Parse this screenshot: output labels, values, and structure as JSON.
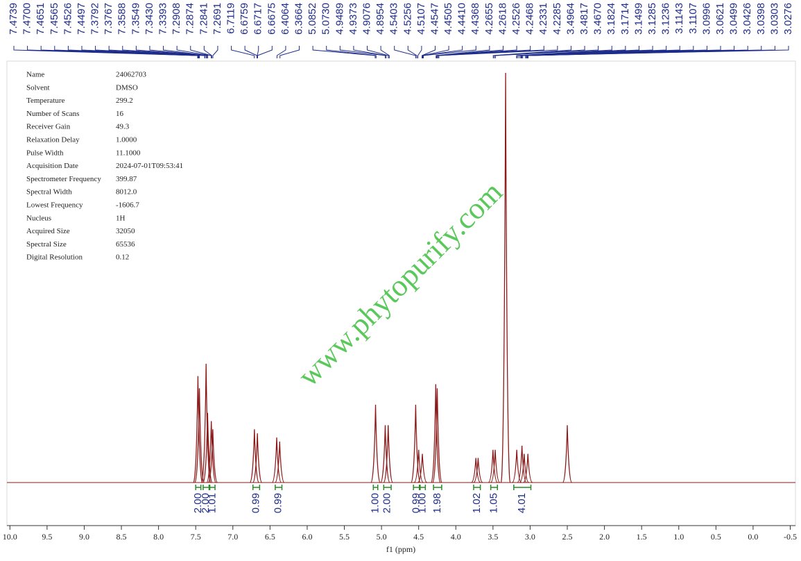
{
  "chart_data": {
    "type": "nmr",
    "xlabel": "f1 (ppm)",
    "watermark": "www.phytopurify.com",
    "xlim": [
      10.04,
      -0.57
    ],
    "ylim": [
      0,
      100
    ],
    "xticks": [
      {
        "value": 10,
        "label": "10.0"
      },
      9.5,
      {
        "value": 9,
        "label": "9.0"
      },
      8.5,
      {
        "value": 8,
        "label": "8.0"
      },
      7.5,
      {
        "value": 7,
        "label": "7.0"
      },
      6.5,
      {
        "value": 6,
        "label": "6.0"
      },
      5.5,
      {
        "value": 5,
        "label": "5.0"
      },
      4.5,
      {
        "value": 4,
        "label": "4.0"
      },
      3.5,
      {
        "value": 3,
        "label": "3.0"
      },
      2.5,
      {
        "value": 2,
        "label": "2.0"
      },
      1.5,
      {
        "value": 1,
        "label": "1.0"
      },
      0.5,
      {
        "value": 0,
        "label": "0.0"
      },
      -0.5
    ],
    "color": "#8b1a1a",
    "x": [
      7.47,
      7.45,
      7.36,
      7.34,
      7.29,
      7.27,
      6.71,
      6.67,
      6.41,
      6.37,
      5.08,
      4.95,
      4.91,
      4.54,
      4.5,
      4.45,
      4.27,
      4.25,
      3.73,
      3.7,
      3.5,
      3.47,
      3.33,
      3.18,
      3.11,
      3.08,
      3.03,
      2.5
    ],
    "values": [
      26,
      23,
      29,
      17,
      15,
      13,
      13,
      12,
      11,
      10,
      19,
      14,
      14,
      19,
      8,
      7,
      24,
      23,
      6,
      6,
      8,
      8,
      100,
      8,
      9,
      7,
      7,
      14
    ],
    "peak_labels": [
      {
        "value": 7.4739,
        "label": "7.4739"
      },
      {
        "value": 7.47,
        "label": "7.4700"
      },
      {
        "value": 7.4651,
        "label": "7.4651"
      },
      {
        "value": 7.4565,
        "label": "7.4565"
      },
      {
        "value": 7.4526,
        "label": "7.4526"
      },
      {
        "value": 7.4497,
        "label": "7.4497"
      },
      {
        "value": 7.3792,
        "label": "7.3792"
      },
      {
        "value": 7.3767,
        "label": "7.3767"
      },
      {
        "value": 7.3588,
        "label": "7.3588"
      },
      {
        "value": 7.3549,
        "label": "7.3549"
      },
      {
        "value": 7.343,
        "label": "7.3430"
      },
      {
        "value": 7.3393,
        "label": "7.3393"
      },
      {
        "value": 7.2908,
        "label": "7.2908"
      },
      {
        "value": 7.2874,
        "label": "7.2874"
      },
      {
        "value": 7.2841,
        "label": "7.2841"
      },
      {
        "value": 7.2691,
        "label": "7.2691"
      },
      {
        "value": 6.7119,
        "label": "6.7119"
      },
      {
        "value": 6.6759,
        "label": "6.6759"
      },
      {
        "value": 6.6717,
        "label": "6.6717"
      },
      {
        "value": 6.6675,
        "label": "6.6675"
      },
      {
        "value": 6.4064,
        "label": "6.4064"
      },
      {
        "value": 6.3664,
        "label": "6.3664"
      },
      {
        "value": 5.0852,
        "label": "5.0852"
      },
      {
        "value": 5.073,
        "label": "5.0730"
      },
      {
        "value": 4.9489,
        "label": "4.9489"
      },
      {
        "value": 4.9373,
        "label": "4.9373"
      },
      {
        "value": 4.9076,
        "label": "4.9076"
      },
      {
        "value": 4.8954,
        "label": "4.8954"
      },
      {
        "value": 4.5403,
        "label": "4.5403"
      },
      {
        "value": 4.5256,
        "label": "4.5256"
      },
      {
        "value": 4.5107,
        "label": "4.5107"
      },
      {
        "value": 4.4547,
        "label": "4.4547"
      },
      {
        "value": 4.4505,
        "label": "4.4505"
      },
      {
        "value": 4.441,
        "label": "4.4410"
      },
      {
        "value": 4.4368,
        "label": "4.4368"
      },
      {
        "value": 4.2655,
        "label": "4.2655"
      },
      {
        "value": 4.2618,
        "label": "4.2618"
      },
      {
        "value": 4.2526,
        "label": "4.2526"
      },
      {
        "value": 4.2468,
        "label": "4.2468"
      },
      {
        "value": 4.2331,
        "label": "4.2331"
      },
      {
        "value": 4.2285,
        "label": "4.2285"
      },
      {
        "value": 3.4964,
        "label": "3.4964"
      },
      {
        "value": 3.4817,
        "label": "3.4817"
      },
      {
        "value": 3.467,
        "label": "3.4670"
      },
      {
        "value": 3.1824,
        "label": "3.1824"
      },
      {
        "value": 3.1714,
        "label": "3.1714"
      },
      {
        "value": 3.1499,
        "label": "3.1499"
      },
      {
        "value": 3.1285,
        "label": "3.1285"
      },
      {
        "value": 3.1236,
        "label": "3.1236"
      },
      {
        "value": 3.1143,
        "label": "3.1143"
      },
      {
        "value": 3.1107,
        "label": "3.1107"
      },
      {
        "value": 3.0996,
        "label": "3.0996"
      },
      {
        "value": 3.0621,
        "label": "3.0621"
      },
      {
        "value": 3.0499,
        "label": "3.0499"
      },
      {
        "value": 3.0426,
        "label": "3.0426"
      },
      {
        "value": 3.0398,
        "label": "3.0398"
      },
      {
        "value": 3.0303,
        "label": "3.0303"
      },
      {
        "value": 3.0276,
        "label": "3.0276"
      }
    ],
    "integrals": [
      {
        "value": 2,
        "label": "2.00",
        "range": [
          7.5,
          7.43
        ]
      },
      {
        "value": 2,
        "label": "2.00",
        "range": [
          7.4,
          7.32
        ]
      },
      {
        "value": 1.01,
        "label": "1.01",
        "range": [
          7.31,
          7.24
        ]
      },
      {
        "value": 0.99,
        "label": "0.99",
        "range": [
          6.73,
          6.64
        ]
      },
      {
        "value": 0.99,
        "label": "0.99",
        "range": [
          6.43,
          6.34
        ]
      },
      {
        "value": 1,
        "label": "1.00",
        "range": [
          5.11,
          5.05
        ]
      },
      {
        "value": 2,
        "label": "2.00",
        "range": [
          4.97,
          4.87
        ]
      },
      {
        "value": 0.99,
        "label": "0.99",
        "range": [
          4.57,
          4.49
        ]
      },
      {
        "value": 1,
        "label": "1.00",
        "range": [
          4.48,
          4.41
        ]
      },
      {
        "value": 1.98,
        "label": "1.98",
        "range": [
          4.3,
          4.19
        ]
      },
      {
        "value": 1.02,
        "label": "1.02",
        "range": [
          3.76,
          3.67
        ]
      },
      {
        "value": 1.05,
        "label": "1.05",
        "range": [
          3.53,
          3.44
        ]
      },
      {
        "value": 4.01,
        "label": "4.01",
        "range": [
          3.22,
          2.99
        ]
      }
    ],
    "parameters": [
      [
        "Name",
        "24062703"
      ],
      [
        "Solvent",
        "DMSO"
      ],
      [
        "Temperature",
        "299.2"
      ],
      [
        "Number of Scans",
        "16"
      ],
      [
        "Receiver Gain",
        "49.3"
      ],
      [
        "Relaxation Delay",
        "1.0000"
      ],
      [
        "Pulse Width",
        "11.1000"
      ],
      [
        "Acquisition Date",
        "2024-07-01T09:53:41"
      ],
      [
        "Spectrometer Frequency",
        "399.87"
      ],
      [
        "Spectral Width",
        "8012.0"
      ],
      [
        "Lowest Frequency",
        "-1606.7"
      ],
      [
        "Nucleus",
        "1H"
      ],
      [
        "Acquired Size",
        "32050"
      ],
      [
        "Spectral Size",
        "65536"
      ],
      [
        "Digital Resolution",
        "0.12"
      ]
    ]
  }
}
